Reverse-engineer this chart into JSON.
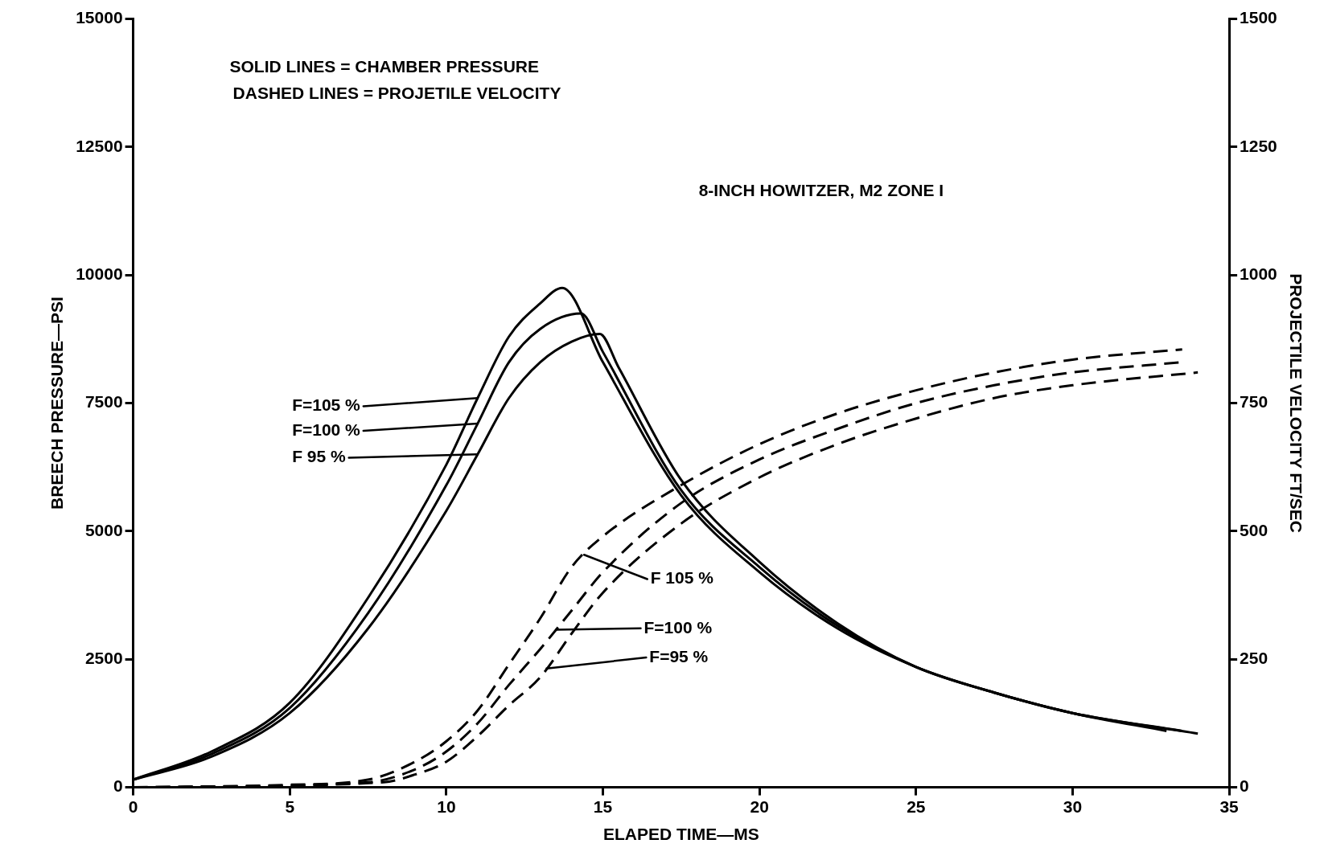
{
  "chart_data": {
    "type": "line",
    "xlabel": "ELAPED TIME—MS",
    "ylabel": "BREECH PRESSURE—PSI",
    "y2label": "PROJECTILE VELOCITY FT/SEC",
    "xlim": [
      0,
      35
    ],
    "xticks": [
      0,
      5,
      10,
      15,
      20,
      25,
      30,
      35
    ],
    "ylim": [
      0,
      15000
    ],
    "yticks": [
      0,
      2500,
      5000,
      7500,
      10000,
      12500,
      15000
    ],
    "y2lim": [
      0,
      1500
    ],
    "y2ticks": [
      0,
      250,
      500,
      750,
      1000,
      1250,
      1500
    ],
    "marker": "none",
    "legend": false,
    "series": [
      {
        "color": "#000000",
        "line_style": "solid",
        "x": [
          0,
          2.5,
          5,
          7.5,
          10,
          11,
          12,
          13,
          13.7,
          15,
          17.5,
          20,
          22.5,
          25,
          27.5,
          30,
          33
        ],
        "values": [
          150,
          700,
          1650,
          3700,
          6300,
          7600,
          8800,
          9450,
          9750,
          8300,
          5700,
          4200,
          3100,
          2350,
          1850,
          1450,
          1100
        ]
      },
      {
        "color": "#000000",
        "line_style": "solid",
        "x": [
          0,
          2.5,
          5,
          7.5,
          10,
          11,
          12,
          13,
          14.3,
          15,
          17.5,
          20,
          22.5,
          25,
          27.5,
          30,
          33.5
        ],
        "values": [
          150,
          650,
          1550,
          3400,
          5900,
          7100,
          8300,
          8950,
          9250,
          8500,
          5800,
          4300,
          3150,
          2350,
          1850,
          1450,
          1100
        ]
      },
      {
        "color": "#000000",
        "line_style": "solid",
        "x": [
          0,
          2.5,
          5,
          7.5,
          10,
          11,
          12,
          13,
          14,
          14.9,
          15.5,
          17.5,
          20,
          22.5,
          25,
          27.5,
          30,
          34
        ],
        "values": [
          150,
          600,
          1450,
          3100,
          5400,
          6500,
          7600,
          8300,
          8700,
          8850,
          8200,
          6000,
          4400,
          3200,
          2350,
          1850,
          1450,
          1050
        ]
      },
      {
        "color": "#000000",
        "line_style": "dashed",
        "axis": "y2",
        "x": [
          0,
          5,
          7.5,
          9,
          10,
          11,
          12,
          13,
          14,
          15,
          17.5,
          20,
          22.5,
          25,
          27.5,
          30,
          33.5
        ],
        "values": [
          0,
          5,
          15,
          50,
          90,
          150,
          240,
          330,
          430,
          490,
          590,
          670,
          730,
          775,
          810,
          835,
          855
        ]
      },
      {
        "color": "#000000",
        "line_style": "dashed",
        "axis": "y2",
        "x": [
          0,
          7.5,
          9,
          10,
          11,
          12,
          13,
          14,
          15,
          17.5,
          20,
          22.5,
          25,
          27.5,
          30,
          33.5
        ],
        "values": [
          0,
          10,
          35,
          70,
          125,
          200,
          270,
          345,
          420,
          555,
          640,
          700,
          750,
          785,
          810,
          830
        ]
      },
      {
        "color": "#000000",
        "line_style": "dashed",
        "axis": "y2",
        "x": [
          0,
          8,
          9,
          10,
          11,
          12,
          13,
          14,
          15,
          17.5,
          20,
          22.5,
          25,
          27.5,
          30,
          34
        ],
        "values": [
          0,
          10,
          25,
          50,
          100,
          160,
          215,
          300,
          380,
          515,
          605,
          670,
          720,
          760,
          785,
          810
        ]
      }
    ],
    "annotations": [
      "SOLID LINES = CHAMBER PRESSURE",
      "DASHED LINES = PROJETILE VELOCITY",
      "8-INCH HOWITZER, M2 ZONE I",
      {
        "text": "F=105 %",
        "x": 11,
        "y": 7600
      },
      {
        "text": "F=100 %",
        "x": 11,
        "y": 7100
      },
      {
        "text": "F 95 %",
        "x": 11,
        "y": 6500
      },
      {
        "text": "F 105 %",
        "x": 14.4,
        "y": 4540
      },
      {
        "text": "F=100 %",
        "x": 13.5,
        "y": 3075
      },
      {
        "text": "F=95 %",
        "x": 13.2,
        "y": 2320
      }
    ]
  }
}
